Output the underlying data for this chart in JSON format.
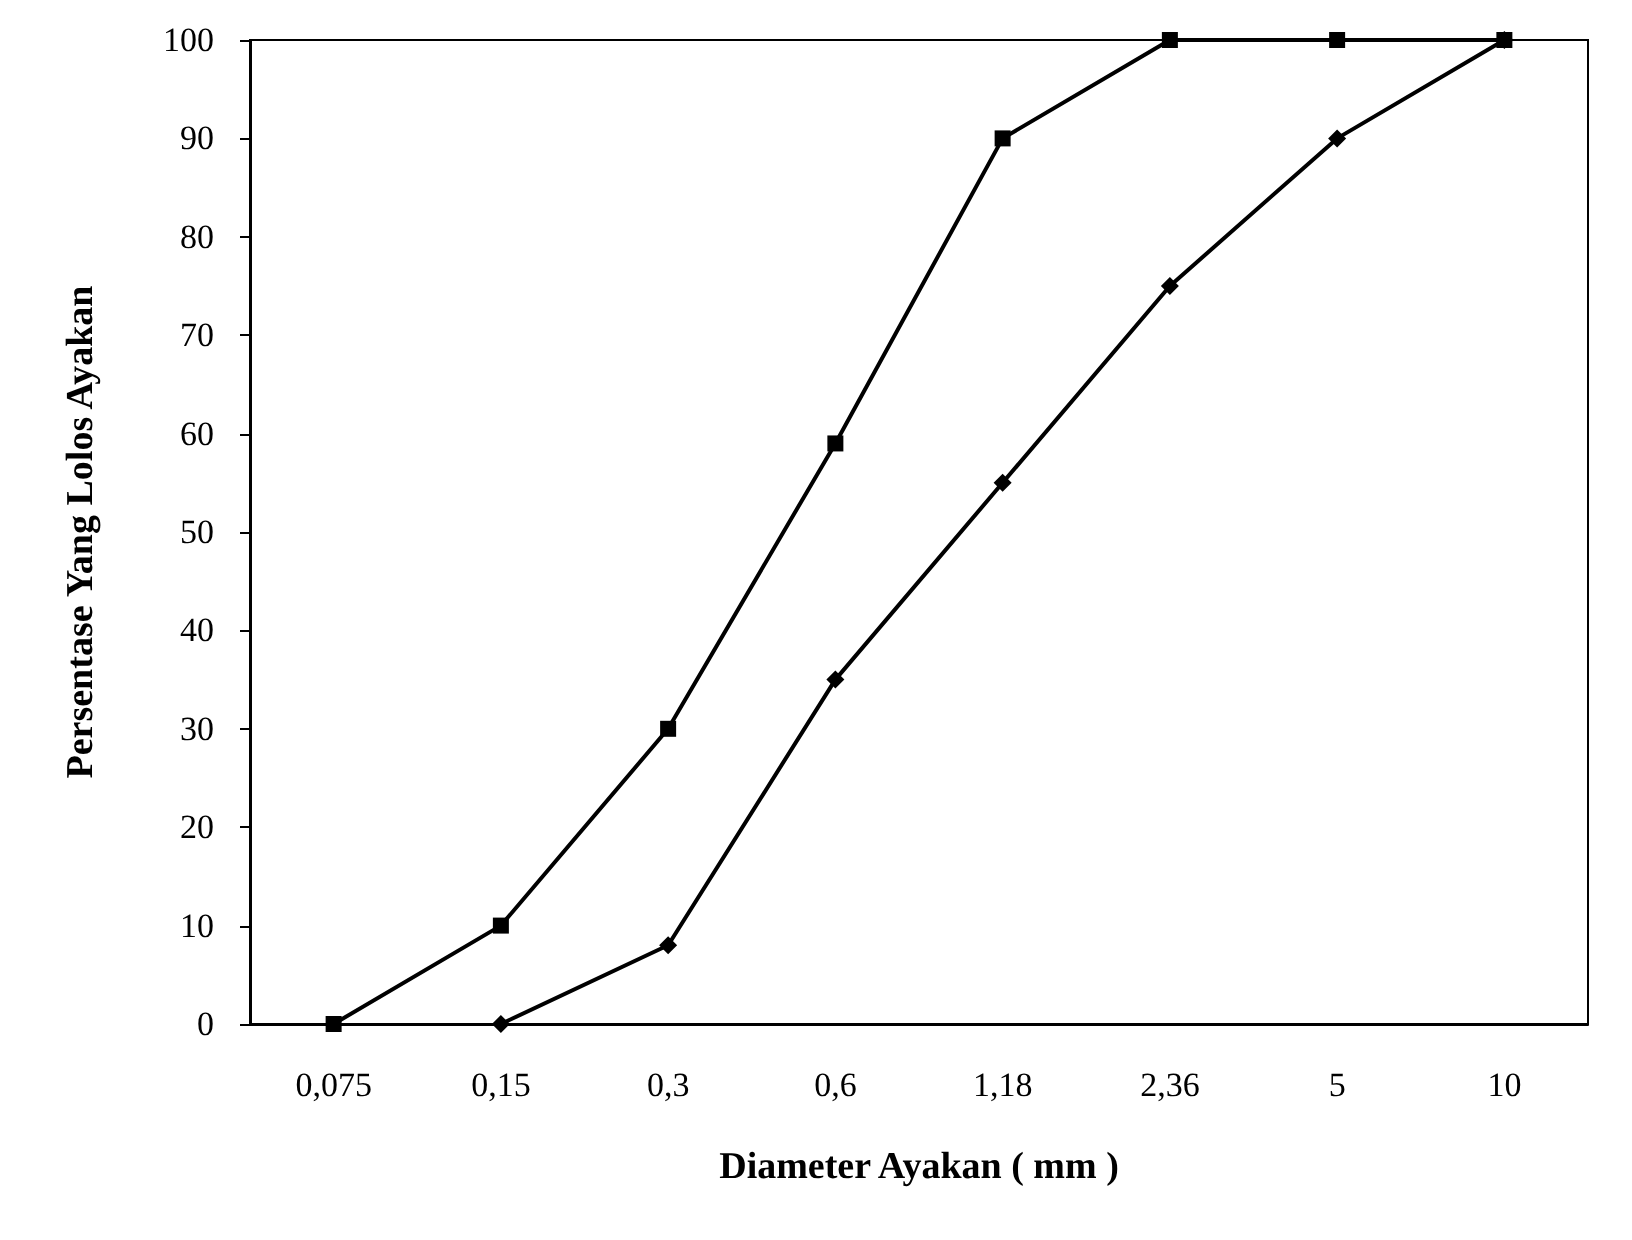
{
  "chart_data": {
    "type": "line",
    "xlabel": "Diameter Ayakan ( mm )",
    "ylabel": "Persentase Yang Lolos Ayakan",
    "categories": [
      "0,075",
      "0,15",
      "0,3",
      "0,6",
      "1,18",
      "2,36",
      "5",
      "10"
    ],
    "series": [
      {
        "color": "#000000",
        "marker": "square",
        "values": [
          0,
          10,
          30,
          59,
          90,
          100,
          100,
          100
        ]
      },
      {
        "color": "#000000",
        "marker": "diamond",
        "values": [
          null,
          0,
          8,
          35,
          55,
          75,
          90,
          100
        ]
      }
    ],
    "ylim": [
      0,
      100
    ],
    "yticks": [
      0,
      10,
      20,
      30,
      40,
      50,
      60,
      70,
      80,
      90,
      100
    ],
    "grid": false,
    "line_style": "solid"
  }
}
